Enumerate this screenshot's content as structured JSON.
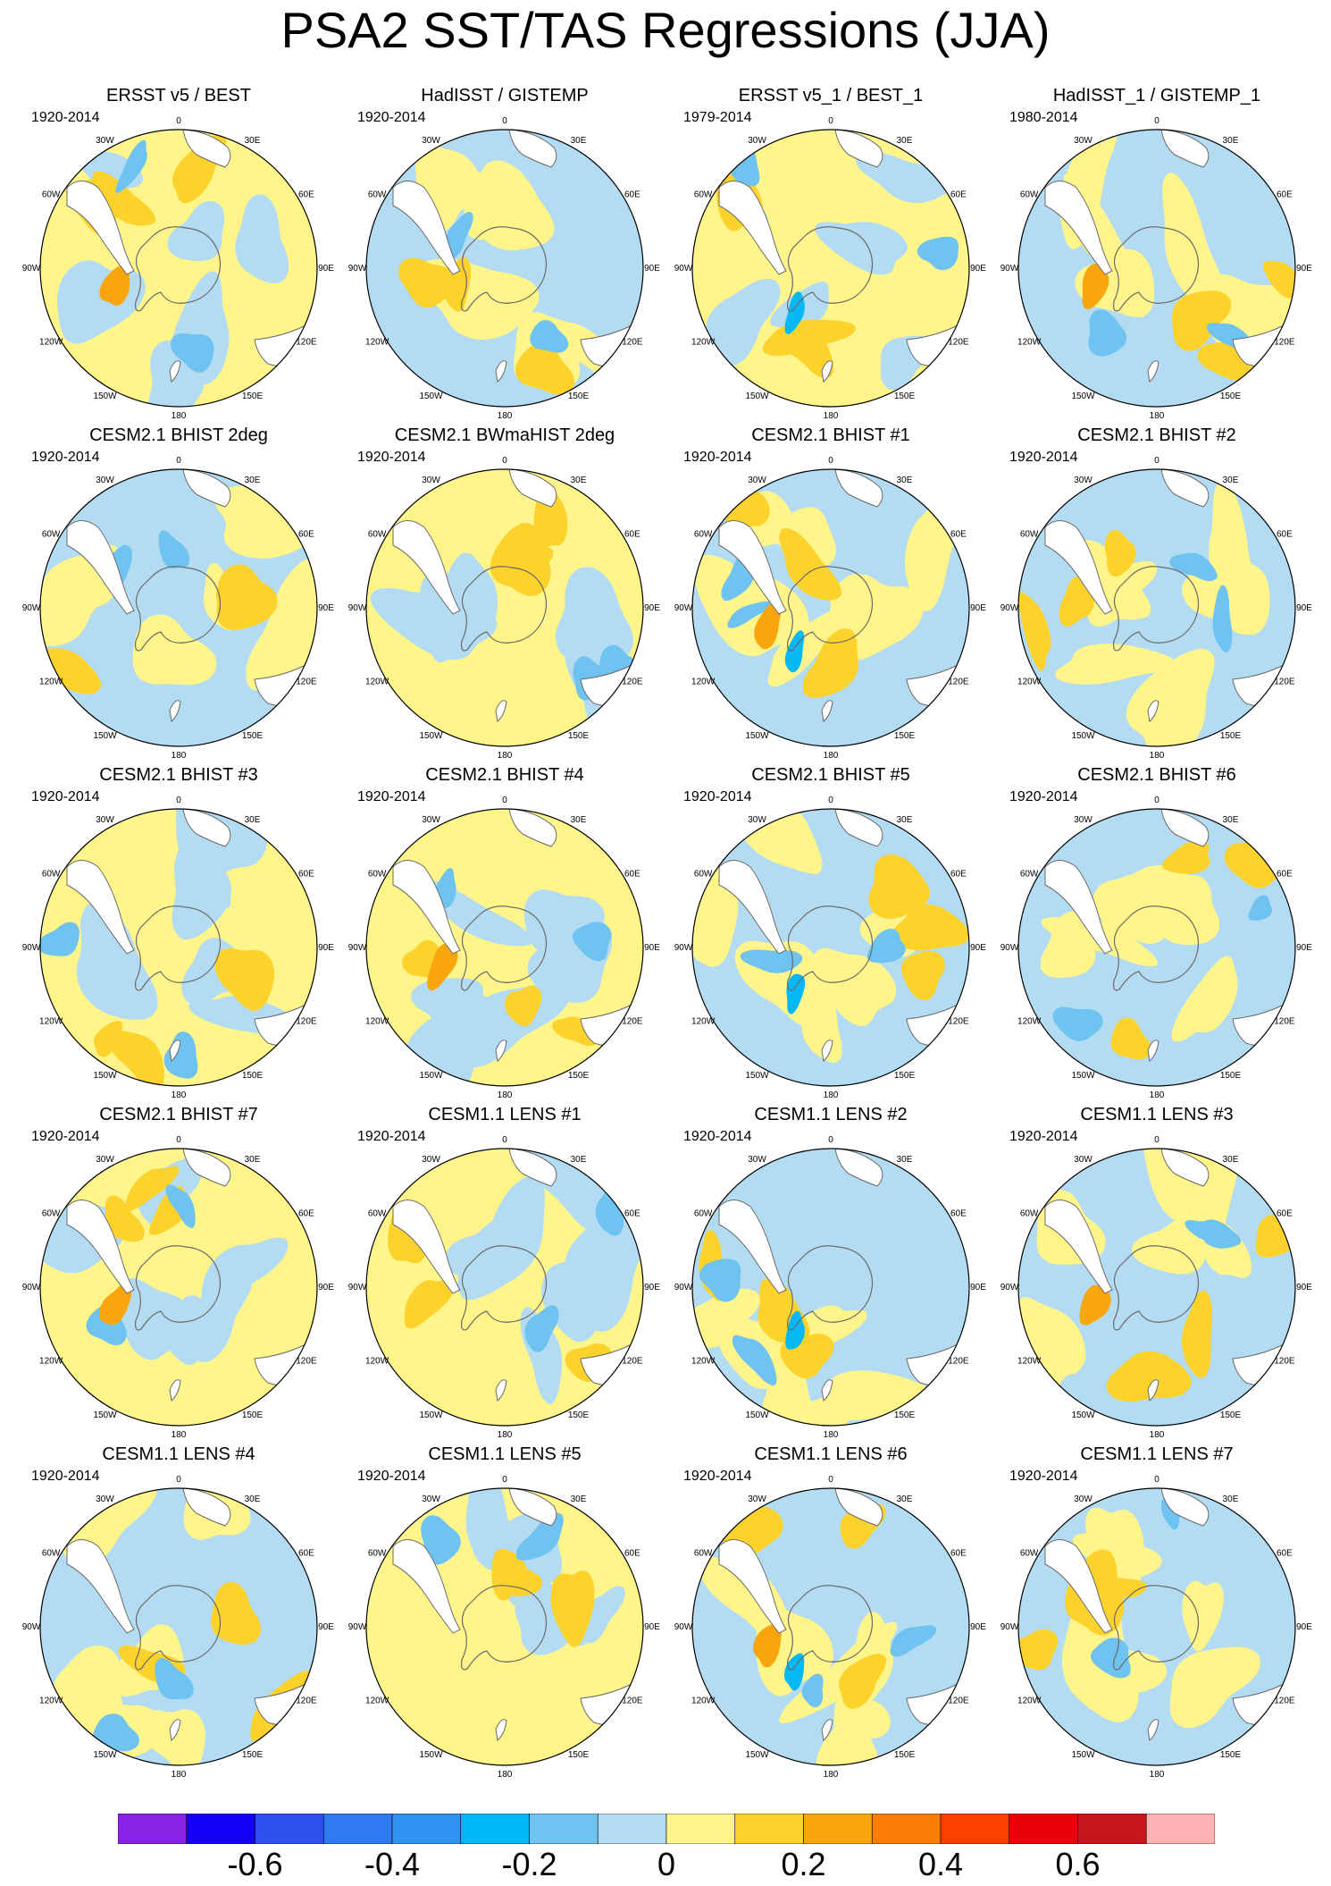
{
  "title": "PSA2 SST/TAS Regressions (JJA)",
  "lon_labels": [
    "0",
    "30E",
    "60E",
    "90E",
    "120E",
    "150E",
    "180",
    "150W",
    "120W",
    "90W",
    "60W",
    "30W"
  ],
  "colors": {
    "light_blue": "#b3dcf2",
    "mid_blue": "#6ec3f0",
    "cyan": "#06b8f5",
    "light_yellow": "#fff58a",
    "gold": "#fcd22b",
    "orange": "#f9a50e",
    "land_white": "#ffffff",
    "coast": "#6a6a6a"
  },
  "panels": [
    {
      "title": "ERSST v5 / BEST",
      "period": "1920-2014",
      "pattern": "yellow"
    },
    {
      "title": "HadISST / GISTEMP",
      "period": "1920-2014",
      "pattern": "blue"
    },
    {
      "title": "ERSST v5_1 / BEST_1",
      "period": "1979-2014",
      "pattern": "yellow"
    },
    {
      "title": "HadISST_1 / GISTEMP_1",
      "period": "1980-2014",
      "pattern": "blue"
    },
    {
      "title": "CESM2.1 BHIST 2deg",
      "period": "1920-2014",
      "pattern": "blue"
    },
    {
      "title": "CESM2.1 BWmaHIST 2deg",
      "period": "1920-2014",
      "pattern": "yellow"
    },
    {
      "title": "CESM2.1 BHIST #1",
      "period": "1920-2014",
      "pattern": "blue"
    },
    {
      "title": "CESM2.1 BHIST #2",
      "period": "1920-2014",
      "pattern": "blue"
    },
    {
      "title": "CESM2.1 BHIST #3",
      "period": "1920-2014",
      "pattern": "yellow"
    },
    {
      "title": "CESM2.1 BHIST #4",
      "period": "1920-2014",
      "pattern": "yellow"
    },
    {
      "title": "CESM2.1 BHIST #5",
      "period": "1920-2014",
      "pattern": "blue"
    },
    {
      "title": "CESM2.1 BHIST #6",
      "period": "1920-2014",
      "pattern": "blue"
    },
    {
      "title": "CESM2.1 BHIST #7",
      "period": "1920-2014",
      "pattern": "yellow"
    },
    {
      "title": "CESM1.1 LENS #1",
      "period": "1920-2014",
      "pattern": "yellow"
    },
    {
      "title": "CESM1.1 LENS #2",
      "period": "1920-2014",
      "pattern": "blue"
    },
    {
      "title": "CESM1.1 LENS #3",
      "period": "1920-2014",
      "pattern": "blue"
    },
    {
      "title": "CESM1.1 LENS #4",
      "period": "1920-2014",
      "pattern": "blue"
    },
    {
      "title": "CESM1.1 LENS #5",
      "period": "1920-2014",
      "pattern": "yellow"
    },
    {
      "title": "CESM1.1 LENS #6",
      "period": "1920-2014",
      "pattern": "blue"
    },
    {
      "title": "CESM1.1 LENS #7",
      "period": "1920-2014",
      "pattern": "blue"
    }
  ],
  "colorbar": {
    "colors": [
      "#8a21e6",
      "#1500f5",
      "#2f4ff0",
      "#2f7af0",
      "#2f93f2",
      "#00b8f8",
      "#6ec3f0",
      "#b3dcf2",
      "#fff58a",
      "#fcd22b",
      "#f9a50e",
      "#f97d06",
      "#ff3f00",
      "#e9000b",
      "#c8171c",
      "#ffb1b3"
    ],
    "labels": [
      {
        "text": "-0.6",
        "value": -0.6
      },
      {
        "text": "-0.4",
        "value": -0.4
      },
      {
        "text": "-0.2",
        "value": -0.2
      },
      {
        "text": "0",
        "value": 0
      },
      {
        "text": "0.2",
        "value": 0.2
      },
      {
        "text": "0.4",
        "value": 0.4
      },
      {
        "text": "0.6",
        "value": 0.6
      }
    ],
    "edges": [
      -0.7,
      -0.6,
      -0.5,
      -0.4,
      -0.3,
      -0.2,
      -0.1,
      0,
      0.1,
      0.2,
      0.3,
      0.4,
      0.5,
      0.6,
      0.7
    ]
  }
}
